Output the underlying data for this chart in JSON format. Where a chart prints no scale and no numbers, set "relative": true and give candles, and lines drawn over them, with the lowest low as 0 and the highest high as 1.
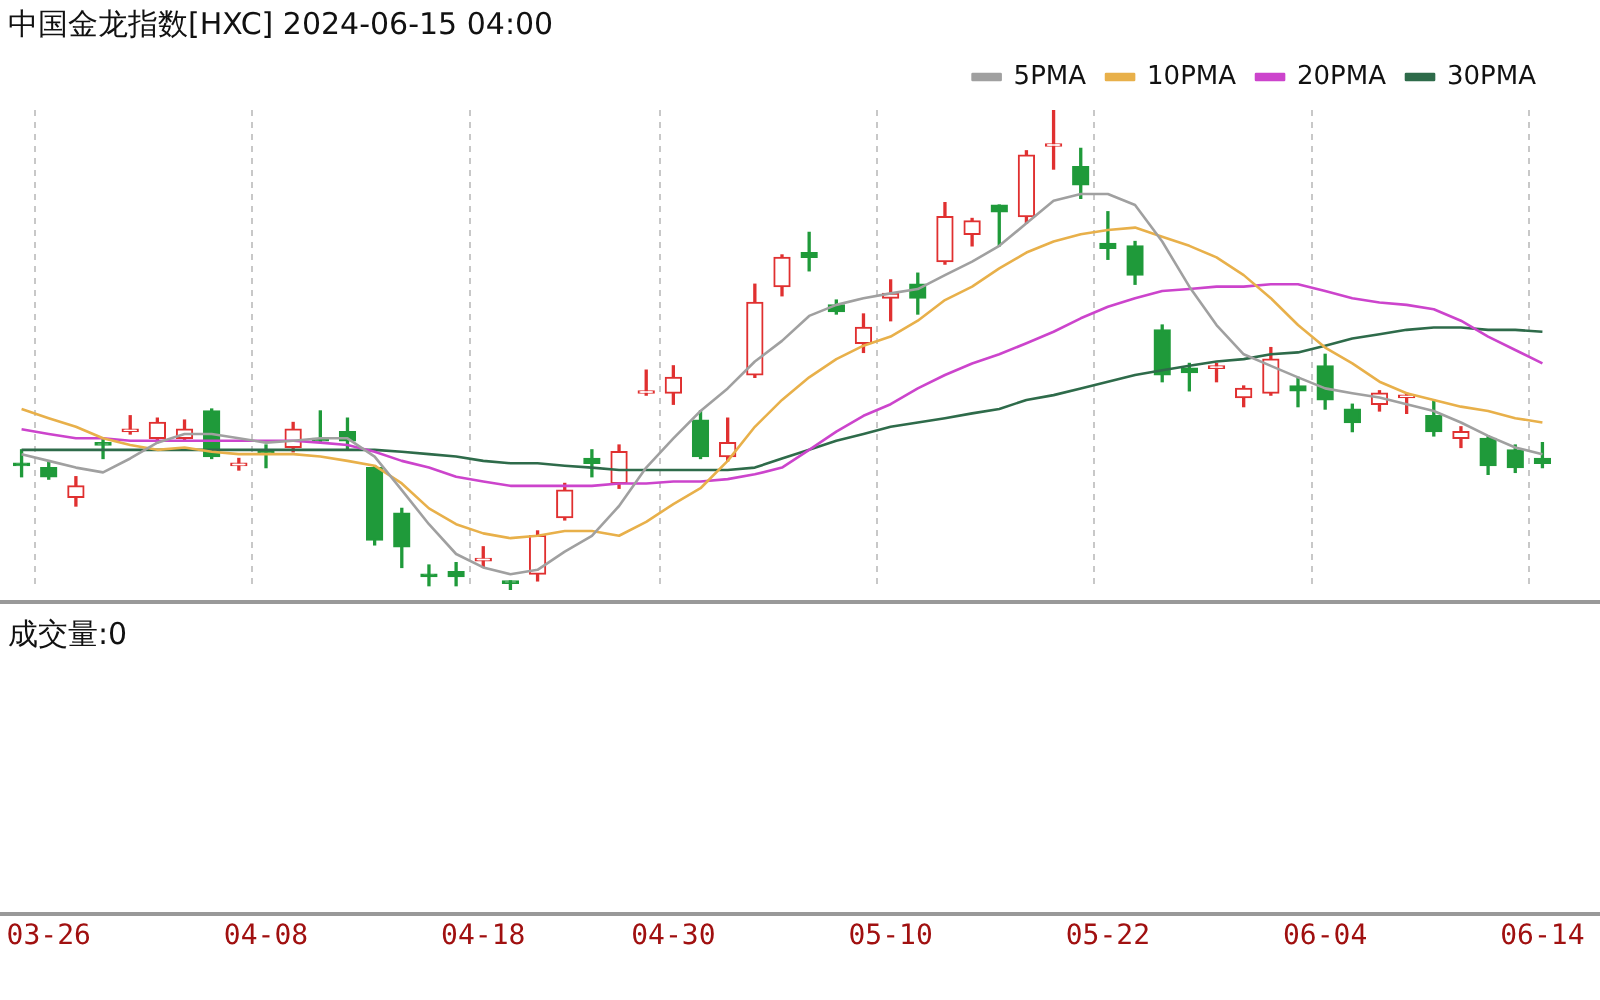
{
  "chart_data": {
    "type": "candlestick",
    "title": "中国金龙指数[HXC] 2024-06-15 04:00",
    "relative": true,
    "grid": "x",
    "legend": "top right",
    "marker": "none",
    "annotations": [
      "成交量:0"
    ],
    "categories": [
      null,
      "03-26",
      null,
      null,
      null,
      null,
      null,
      null,
      null,
      "04-08",
      null,
      null,
      null,
      null,
      null,
      null,
      null,
      "04-18",
      null,
      null,
      null,
      null,
      null,
      null,
      "04-30",
      null,
      null,
      null,
      null,
      null,
      null,
      null,
      "05-10",
      null,
      null,
      null,
      null,
      null,
      null,
      null,
      "05-22",
      null,
      null,
      null,
      null,
      null,
      null,
      null,
      "06-04",
      null,
      null,
      null,
      null,
      null,
      null,
      null,
      "06-14"
    ],
    "ohlc": [
      [
        0.264,
        0.292,
        0.236,
        0.259
      ],
      [
        0.255,
        0.269,
        0.231,
        0.236
      ],
      [
        0.193,
        0.236,
        0.175,
        0.217
      ],
      [
        0.307,
        0.316,
        0.274,
        0.302
      ],
      [
        0.33,
        0.363,
        0.325,
        0.335
      ],
      [
        0.316,
        0.358,
        0.307,
        0.349
      ],
      [
        0.316,
        0.354,
        0.311,
        0.335
      ],
      [
        0.373,
        0.377,
        0.274,
        0.278
      ],
      [
        0.259,
        0.274,
        0.25,
        0.264
      ],
      [
        0.288,
        0.302,
        0.255,
        0.283
      ],
      [
        0.297,
        0.349,
        0.288,
        0.335
      ],
      [
        0.316,
        0.373,
        0.307,
        0.311
      ],
      [
        0.33,
        0.358,
        0.292,
        0.311
      ],
      [
        0.255,
        0.259,
        0.094,
        0.104
      ],
      [
        0.16,
        0.17,
        0.047,
        0.09
      ],
      [
        0.033,
        0.052,
        0.009,
        0.028
      ],
      [
        0.038,
        0.057,
        0.009,
        0.028
      ],
      [
        0.061,
        0.09,
        0.047,
        0.066
      ],
      [
        0.019,
        0.019,
        0,
        0.014
      ],
      [
        0.033,
        0.123,
        0.019,
        0.113
      ],
      [
        0.151,
        0.222,
        0.146,
        0.208
      ],
      [
        0.274,
        0.292,
        0.236,
        0.264
      ],
      [
        0.222,
        0.302,
        0.212,
        0.288
      ],
      [
        0.41,
        0.458,
        0.406,
        0.415
      ],
      [
        0.41,
        0.467,
        0.387,
        0.443
      ],
      [
        0.354,
        0.373,
        0.274,
        0.278
      ],
      [
        0.278,
        0.358,
        0.269,
        0.307
      ],
      [
        0.448,
        0.637,
        0.443,
        0.599
      ],
      [
        0.632,
        0.698,
        0.613,
        0.693
      ],
      [
        0.703,
        0.745,
        0.665,
        0.693
      ],
      [
        0.594,
        0.604,
        0.575,
        0.58
      ],
      [
        0.514,
        0.575,
        0.495,
        0.547
      ],
      [
        0.608,
        0.646,
        0.561,
        0.618
      ],
      [
        0.637,
        0.66,
        0.575,
        0.608
      ],
      [
        0.684,
        0.807,
        0.679,
        0.778
      ],
      [
        0.741,
        0.774,
        0.717,
        0.769
      ],
      [
        0.802,
        0.802,
        0.717,
        0.788
      ],
      [
        0.778,
        0.915,
        0.764,
        0.906
      ],
      [
        0.925,
        1,
        0.877,
        0.929
      ],
      [
        0.882,
        0.92,
        0.816,
        0.844
      ],
      [
        0.722,
        0.788,
        0.689,
        0.712
      ],
      [
        0.717,
        0.726,
        0.637,
        0.656
      ],
      [
        0.542,
        0.552,
        0.434,
        0.448
      ],
      [
        0.462,
        0.472,
        0.415,
        0.453
      ],
      [
        0.462,
        0.472,
        0.434,
        0.467
      ],
      [
        0.401,
        0.425,
        0.382,
        0.42
      ],
      [
        0.41,
        0.505,
        0.406,
        0.481
      ],
      [
        0.425,
        0.443,
        0.382,
        0.415
      ],
      [
        0.467,
        0.491,
        0.377,
        0.396
      ],
      [
        0.377,
        0.387,
        0.33,
        0.349
      ],
      [
        0.387,
        0.415,
        0.373,
        0.41
      ],
      [
        0.401,
        0.41,
        0.368,
        0.406
      ],
      [
        0.363,
        0.396,
        0.321,
        0.33
      ],
      [
        0.316,
        0.34,
        0.297,
        0.33
      ],
      [
        0.316,
        0.321,
        0.241,
        0.259
      ],
      [
        0.292,
        0.302,
        0.245,
        0.255
      ],
      [
        0.274,
        0.307,
        0.255,
        0.264
      ]
    ],
    "series": [
      {
        "name": "5PMA",
        "type": "line",
        "color": "#a0a0a0",
        "values": [
          0.283,
          0.269,
          0.255,
          0.245,
          0.274,
          0.307,
          0.325,
          0.325,
          0.316,
          0.307,
          0.311,
          0.316,
          0.316,
          0.278,
          0.208,
          0.137,
          0.075,
          0.047,
          0.033,
          0.042,
          0.08,
          0.113,
          0.175,
          0.255,
          0.316,
          0.373,
          0.42,
          0.476,
          0.519,
          0.571,
          0.594,
          0.608,
          0.618,
          0.627,
          0.656,
          0.684,
          0.717,
          0.764,
          0.811,
          0.825,
          0.825,
          0.802,
          0.726,
          0.632,
          0.552,
          0.491,
          0.467,
          0.443,
          0.42,
          0.41,
          0.401,
          0.387,
          0.373,
          0.349,
          0.321,
          0.297,
          0.283
        ]
      },
      {
        "name": "10PMA",
        "type": "line",
        "color": "#e8b04a",
        "values": [
          0.377,
          0.358,
          0.34,
          0.316,
          0.302,
          0.292,
          0.297,
          0.288,
          0.283,
          0.283,
          0.283,
          0.278,
          0.269,
          0.259,
          0.222,
          0.17,
          0.137,
          0.118,
          0.108,
          0.113,
          0.123,
          0.123,
          0.113,
          0.142,
          0.179,
          0.212,
          0.269,
          0.34,
          0.396,
          0.443,
          0.481,
          0.509,
          0.528,
          0.561,
          0.604,
          0.632,
          0.67,
          0.703,
          0.726,
          0.741,
          0.75,
          0.755,
          0.736,
          0.717,
          0.693,
          0.656,
          0.608,
          0.552,
          0.505,
          0.472,
          0.434,
          0.41,
          0.396,
          0.382,
          0.373,
          0.358,
          0.349
        ]
      },
      {
        "name": "20PMA",
        "type": "line",
        "color": "#cc44cc",
        "values": [
          0.335,
          0.325,
          0.316,
          0.316,
          0.311,
          0.311,
          0.311,
          0.311,
          0.311,
          0.311,
          0.311,
          0.307,
          0.302,
          0.288,
          0.269,
          0.255,
          0.236,
          0.226,
          0.217,
          0.217,
          0.217,
          0.217,
          0.222,
          0.222,
          0.226,
          0.226,
          0.231,
          0.241,
          0.255,
          0.292,
          0.33,
          0.363,
          0.387,
          0.42,
          0.448,
          0.472,
          0.491,
          0.514,
          0.538,
          0.566,
          0.59,
          0.608,
          0.623,
          0.627,
          0.632,
          0.632,
          0.637,
          0.637,
          0.623,
          0.608,
          0.599,
          0.594,
          0.585,
          0.561,
          0.528,
          0.5,
          0.472
        ]
      },
      {
        "name": "30PMA",
        "type": "line",
        "color": "#2e6b4a",
        "values": [
          0.292,
          0.292,
          0.292,
          0.292,
          0.292,
          0.292,
          0.292,
          0.292,
          0.292,
          0.292,
          0.292,
          0.292,
          0.292,
          0.292,
          0.288,
          0.283,
          0.278,
          0.269,
          0.264,
          0.264,
          0.259,
          0.255,
          0.25,
          0.25,
          0.25,
          0.25,
          0.25,
          0.255,
          0.274,
          0.292,
          0.311,
          0.325,
          0.34,
          0.349,
          0.358,
          0.368,
          0.377,
          0.396,
          0.406,
          0.42,
          0.434,
          0.448,
          0.458,
          0.467,
          0.476,
          0.481,
          0.491,
          0.495,
          0.509,
          0.524,
          0.533,
          0.542,
          0.547,
          0.547,
          0.542,
          0.542,
          0.538
        ]
      }
    ]
  }
}
